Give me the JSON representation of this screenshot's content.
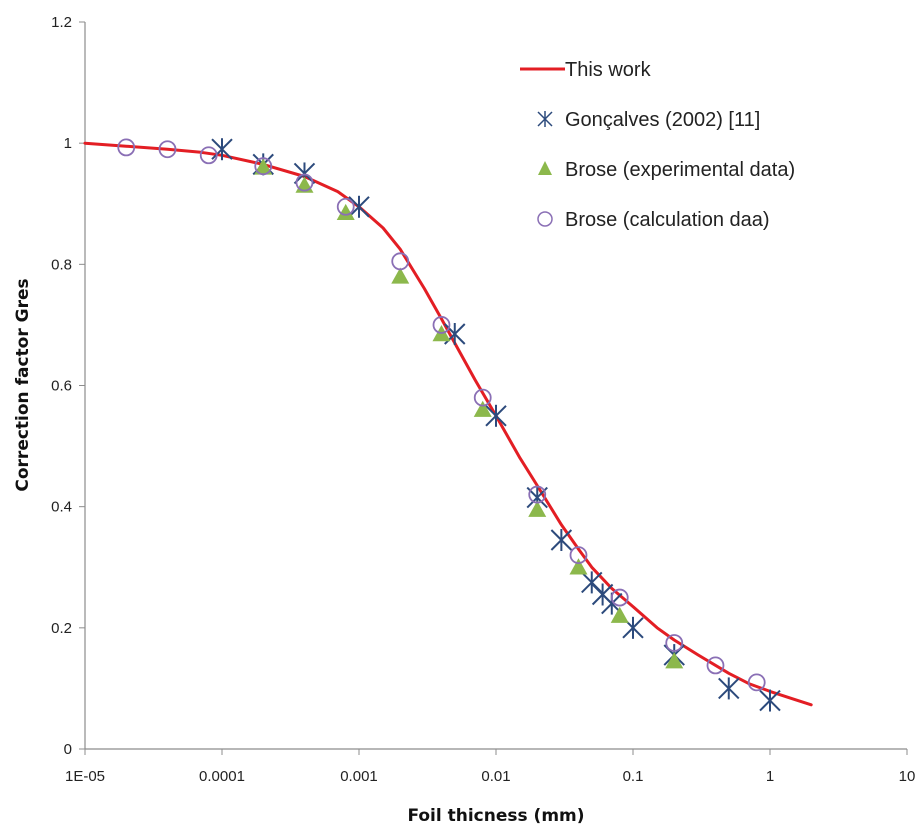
{
  "chart_data": {
    "type": "scatter",
    "xlabel": "Foil thicness (mm)",
    "ylabel": "Correction factor Gres",
    "xscale": "log",
    "xlim": [
      1e-05,
      10
    ],
    "ylim": [
      0,
      1.2
    ],
    "x_ticks": [
      1e-05,
      0.0001,
      0.001,
      0.01,
      0.1,
      1,
      10
    ],
    "x_tick_labels": [
      "1E-05",
      "0.0001",
      "0.001",
      "0.01",
      "0.1",
      "1",
      "10"
    ],
    "y_ticks": [
      0,
      0.2,
      0.4,
      0.6,
      0.8,
      1,
      1.2
    ],
    "y_tick_labels": [
      "0",
      "0.2",
      "0.4",
      "0.6",
      "0.8",
      "1",
      "1.2"
    ],
    "grid": false,
    "legend_position": "top-right",
    "series": [
      {
        "name": "This work",
        "kind": "line",
        "color": "#e31e24",
        "x": [
          1e-05,
          2e-05,
          4e-05,
          7e-05,
          0.0001,
          0.0002,
          0.0004,
          0.0007,
          0.001,
          0.0015,
          0.002,
          0.003,
          0.004,
          0.005,
          0.007,
          0.01,
          0.015,
          0.02,
          0.03,
          0.04,
          0.05,
          0.07,
          0.1,
          0.15,
          0.2,
          0.3,
          0.5,
          0.7,
          1,
          1.5,
          2
        ],
        "y": [
          1.0,
          0.995,
          0.99,
          0.985,
          0.98,
          0.965,
          0.945,
          0.92,
          0.895,
          0.86,
          0.825,
          0.76,
          0.71,
          0.67,
          0.61,
          0.55,
          0.48,
          0.435,
          0.37,
          0.33,
          0.3,
          0.265,
          0.235,
          0.2,
          0.18,
          0.155,
          0.125,
          0.108,
          0.095,
          0.082,
          0.073
        ]
      },
      {
        "name": "Gonçalves (2002)  [11]",
        "kind": "marker",
        "marker": "asterisk",
        "color": "#2c4a7c",
        "x": [
          0.0001,
          0.0002,
          0.0004,
          0.001,
          0.005,
          0.01,
          0.02,
          0.03,
          0.05,
          0.06,
          0.07,
          0.1,
          0.2,
          0.5,
          1
        ],
        "y": [
          0.99,
          0.965,
          0.95,
          0.895,
          0.685,
          0.55,
          0.415,
          0.345,
          0.275,
          0.255,
          0.24,
          0.2,
          0.155,
          0.1,
          0.08
        ]
      },
      {
        "name": "Brose (experimental data)",
        "kind": "marker",
        "marker": "triangle",
        "color": "#8cb84c",
        "x": [
          0.0002,
          0.0004,
          0.0008,
          0.002,
          0.004,
          0.008,
          0.02,
          0.04,
          0.08,
          0.2
        ],
        "y": [
          0.96,
          0.93,
          0.885,
          0.78,
          0.685,
          0.56,
          0.395,
          0.3,
          0.22,
          0.145
        ]
      },
      {
        "name": "Brose (calculation daa)",
        "kind": "marker",
        "marker": "circle",
        "color": "#8a6fb5",
        "x": [
          2e-05,
          4e-05,
          8e-05,
          0.0002,
          0.0004,
          0.0008,
          0.002,
          0.004,
          0.008,
          0.02,
          0.04,
          0.08,
          0.2,
          0.4,
          0.8
        ],
        "y": [
          0.993,
          0.99,
          0.98,
          0.962,
          0.935,
          0.895,
          0.805,
          0.7,
          0.58,
          0.42,
          0.32,
          0.25,
          0.175,
          0.138,
          0.11
        ]
      }
    ]
  }
}
